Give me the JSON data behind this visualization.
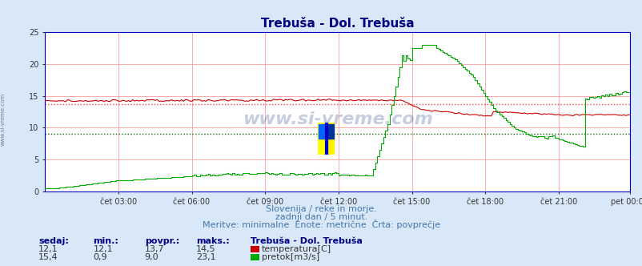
{
  "title": "Trebuša - Dol. Trebuša",
  "bg_color": "#d8e8f8",
  "plot_bg_color": "#ffffff",
  "grid_color_major": "#ffaaaa",
  "grid_color_minor": "#ffdddd",
  "x_ticks_labels": [
    "čet 03:00",
    "čet 06:00",
    "čet 09:00",
    "čet 12:00",
    "čet 15:00",
    "čet 18:00",
    "čet 21:00",
    "pet 00:00"
  ],
  "x_ticks_pos": [
    36,
    72,
    108,
    144,
    180,
    216,
    252,
    287
  ],
  "total_points": 288,
  "ylim": [
    0,
    25
  ],
  "yticks": [
    0,
    5,
    10,
    15,
    20,
    25
  ],
  "temp_color": "#cc0000",
  "flow_color": "#00aa00",
  "avg_temp_color": "#ff4444",
  "avg_flow_color": "#006600",
  "watermark_color": "#1a3a8a",
  "subtitle1": "Slovenija / reke in morje.",
  "subtitle2": "zadnji dan / 5 minut.",
  "subtitle3": "Meritve: minimalne  Enote: metrične  Črta: povprečje",
  "footer_title": "Trebuša - Dol. Trebuša",
  "col_headers": [
    "sedaj:",
    "min.:",
    "povpr.:",
    "maks.:"
  ],
  "temp_row": [
    "12,1",
    "12,1",
    "13,7",
    "14,5"
  ],
  "flow_row": [
    "15,4",
    "0,9",
    "9,0",
    "23,1"
  ],
  "temp_label": "temperatura[C]",
  "flow_label": "pretok[m3/s]",
  "avg_temp": 13.7,
  "avg_flow": 9.0
}
